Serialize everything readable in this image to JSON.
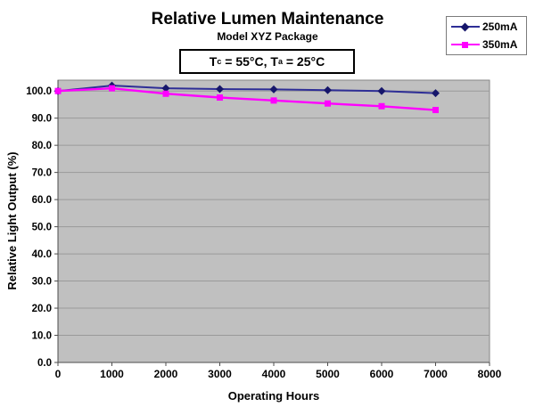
{
  "annotation": {
    "part1": "T",
    "sub1": "c",
    "part2": " = 55°C, T",
    "sub2": "a",
    "part3": " = 25°C"
  },
  "chart_data": {
    "type": "line",
    "title": "Relative Lumen Maintenance",
    "subtitle": "Model XYZ Package",
    "annotation_text": "Tc = 55°C, Ta = 25°C",
    "xlabel": "Operating Hours",
    "ylabel": "Relative Light Output (%)",
    "x": [
      0,
      1000,
      2000,
      3000,
      4000,
      5000,
      6000,
      7000
    ],
    "series": [
      {
        "name": "250mA",
        "color": "#2e2e96",
        "marker_color": "#16166b",
        "marker": "diamond",
        "values": [
          100.0,
          102.0,
          101.0,
          100.7,
          100.6,
          100.3,
          100.0,
          99.2
        ]
      },
      {
        "name": "350mA",
        "color": "#ff00ff",
        "marker_color": "#ff00ff",
        "marker": "square",
        "values": [
          100.0,
          101.0,
          99.0,
          97.6,
          96.5,
          95.4,
          94.4,
          93.0
        ]
      }
    ],
    "xlim": [
      0,
      8000
    ],
    "ylim": [
      0,
      104
    ],
    "xtick_labels": [
      "0",
      "1000",
      "2000",
      "3000",
      "4000",
      "5000",
      "6000",
      "7000",
      "8000"
    ],
    "ytick_labels": [
      "0.0",
      "10.0",
      "20.0",
      "30.0",
      "40.0",
      "50.0",
      "60.0",
      "70.0",
      "80.0",
      "90.0",
      "100.0"
    ],
    "grid": true,
    "legend_position": "top-right",
    "colors": {
      "plot_bg": "#c0c0c0",
      "grid": "#9a9a9a",
      "plot_border": "#868686",
      "axis": "#4d4d4d",
      "text": "#000000"
    }
  }
}
